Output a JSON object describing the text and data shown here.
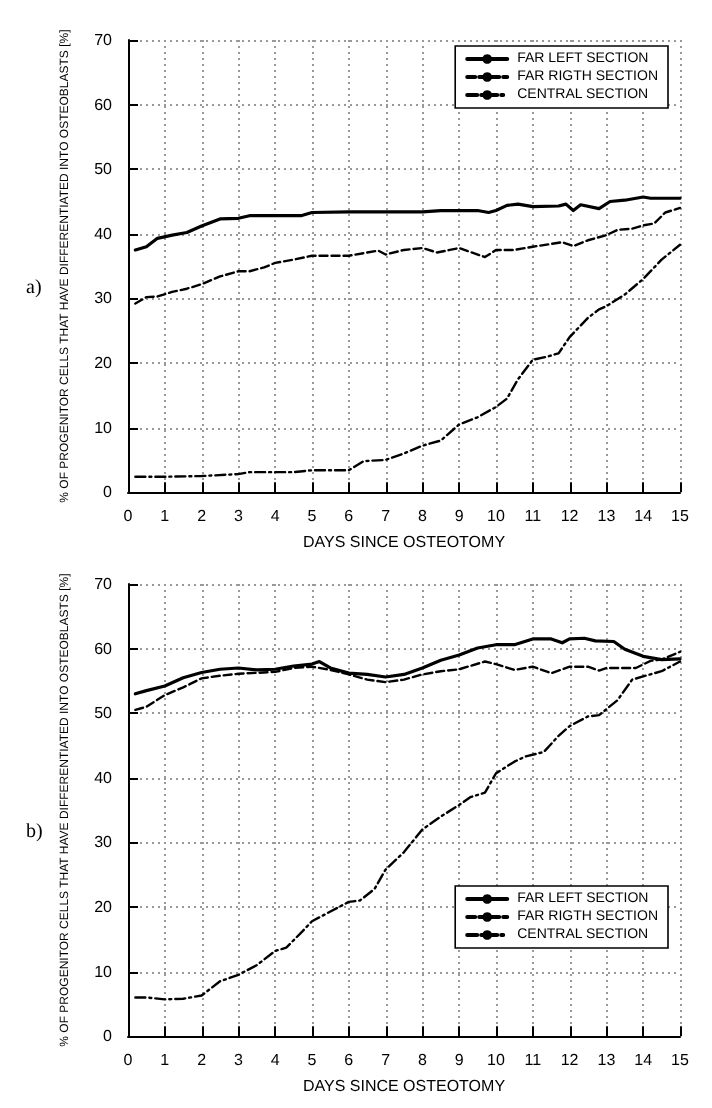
{
  "chart_data": [
    {
      "type": "line",
      "title": "a)",
      "xlabel": "DAYS SINCE OSTEOTOMY",
      "ylabel": "% OF PROGENITOR CELLS THAT HAVE DIFFERENTIATED INTO OSTEOBLASTS [%]",
      "xlim": [
        0,
        15
      ],
      "xticks": [
        0,
        1,
        2,
        3,
        4,
        5,
        6,
        7,
        8,
        9,
        10,
        11,
        12,
        13,
        14,
        15
      ],
      "ylim": [
        0,
        70
      ],
      "yticks": [
        0,
        10,
        20,
        30,
        40,
        50,
        60,
        70
      ],
      "grid": true,
      "legend": "top right",
      "series": [
        {
          "name": "FAR LEFT SECTION",
          "color": "#000000",
          "line_style": "solid",
          "x": [
            0.2,
            0.5,
            0.8,
            1.2,
            1.6,
            2,
            2.5,
            3,
            3.3,
            4,
            4.7,
            5,
            6,
            7,
            8,
            8.5,
            9.5,
            9.8,
            10,
            10.3,
            10.6,
            11,
            11.7,
            11.9,
            12.1,
            12.3,
            12.8,
            13.1,
            13.5,
            14,
            14.2,
            15
          ],
          "values": [
            37.5,
            38,
            39.3,
            39.8,
            40.2,
            41.2,
            42.3,
            42.4,
            42.8,
            42.8,
            42.8,
            43.3,
            43.4,
            43.4,
            43.4,
            43.6,
            43.6,
            43.3,
            43.6,
            44.4,
            44.6,
            44.2,
            44.3,
            44.6,
            43.6,
            44.5,
            43.9,
            45,
            45.2,
            45.7,
            45.5,
            45.5
          ]
        },
        {
          "name": "FAR RIGTH SECTION",
          "color": "#000000",
          "line_style": "dashed",
          "x": [
            0.2,
            0.5,
            0.8,
            1.2,
            1.6,
            2,
            2.5,
            3,
            3.3,
            3.7,
            4,
            4.5,
            5,
            6,
            6.8,
            7,
            7.5,
            8,
            8.4,
            9,
            9.7,
            10,
            10.5,
            11,
            11.8,
            12.1,
            12.5,
            13,
            13.3,
            13.7,
            14,
            14.3,
            14.6,
            15
          ],
          "values": [
            29.2,
            30.2,
            30.3,
            31,
            31.5,
            32.2,
            33.4,
            34.2,
            34.2,
            34.8,
            35.5,
            36,
            36.6,
            36.6,
            37.4,
            36.8,
            37.5,
            37.8,
            37.1,
            37.8,
            36.4,
            37.5,
            37.5,
            38,
            38.7,
            38.1,
            39,
            39.8,
            40.6,
            40.8,
            41.3,
            41.6,
            43.3,
            44
          ]
        },
        {
          "name": "CENTRAL SECTION",
          "color": "#000000",
          "line_style": "dotted",
          "x": [
            0.2,
            1,
            2,
            3,
            3.3,
            4.5,
            5,
            6,
            6.4,
            7,
            7.5,
            8,
            8.5,
            9,
            9.5,
            10,
            10.3,
            10.6,
            11,
            11.4,
            11.7,
            12,
            12.5,
            12.8,
            13,
            13.5,
            14,
            14.5,
            15
          ],
          "values": [
            2.4,
            2.4,
            2.5,
            2.8,
            3.1,
            3.1,
            3.4,
            3.4,
            4.8,
            5,
            6,
            7.2,
            8,
            10.5,
            11.6,
            13.2,
            14.5,
            17.5,
            20.5,
            21,
            21.5,
            24,
            27,
            28.3,
            28.8,
            30.6,
            33,
            36,
            38.3
          ]
        }
      ]
    },
    {
      "type": "line",
      "title": "b)",
      "xlabel": "DAYS SINCE OSTEOTOMY",
      "ylabel": "% OF PROGENITOR CELLS THAT HAVE DIFFERENTIATED INTO OSTEOBLASTS [%]",
      "xlim": [
        0,
        15
      ],
      "xticks": [
        0,
        1,
        2,
        3,
        4,
        5,
        6,
        7,
        8,
        9,
        10,
        11,
        12,
        13,
        14,
        15
      ],
      "ylim": [
        0,
        70
      ],
      "yticks": [
        0,
        10,
        20,
        30,
        40,
        50,
        60,
        70
      ],
      "grid": true,
      "legend": "bottom right",
      "series": [
        {
          "name": "FAR LEFT SECTION",
          "color": "#000000",
          "line_style": "solid",
          "x": [
            0.2,
            0.5,
            1,
            1.5,
            2,
            2.5,
            3,
            3.5,
            4,
            4.5,
            5,
            5.2,
            5.5,
            6,
            6.5,
            7,
            7.5,
            8,
            8.5,
            9,
            9.5,
            10,
            10.5,
            11,
            11.5,
            11.8,
            12,
            12.4,
            12.7,
            13.2,
            13.5,
            14,
            14.5,
            15
          ],
          "values": [
            53,
            53.5,
            54.2,
            55.5,
            56.3,
            56.8,
            57,
            56.7,
            56.8,
            57.3,
            57.6,
            58,
            57,
            56.2,
            56,
            55.6,
            56,
            57,
            58.2,
            59,
            60.1,
            60.6,
            60.6,
            61.5,
            61.5,
            60.9,
            61.5,
            61.6,
            61.2,
            61.1,
            59.9,
            58.8,
            58.3,
            58.4
          ]
        },
        {
          "name": "FAR RIGTH SECTION",
          "color": "#000000",
          "line_style": "dashed",
          "x": [
            0.2,
            0.5,
            1,
            1.5,
            2,
            2.5,
            3,
            4,
            4.5,
            5,
            5.5,
            6,
            6.5,
            7,
            7.5,
            8,
            8.5,
            9,
            9.7,
            10,
            10.5,
            11,
            11.5,
            12,
            12.5,
            12.8,
            13,
            13.8,
            14.2,
            14.5,
            15
          ],
          "values": [
            50.5,
            51,
            52.8,
            54,
            55.4,
            55.8,
            56.1,
            56.4,
            57,
            57.2,
            56.7,
            56,
            55.2,
            54.8,
            55.2,
            56,
            56.5,
            56.8,
            58,
            57.6,
            56.7,
            57.2,
            56.2,
            57.2,
            57.2,
            56.6,
            57,
            57,
            58.1,
            58.3,
            59.5
          ]
        },
        {
          "name": "CENTRAL SECTION",
          "color": "#000000",
          "line_style": "dotted",
          "x": [
            0.2,
            0.5,
            1,
            1.5,
            2,
            2.5,
            3,
            3.5,
            4,
            4.3,
            4.7,
            5,
            5.5,
            6,
            6.3,
            6.7,
            7,
            7.5,
            8,
            8.5,
            9,
            9.3,
            9.7,
            10,
            10.5,
            10.8,
            11.3,
            11.7,
            12,
            12.5,
            12.8,
            13.3,
            13.7,
            14,
            14.5,
            15
          ],
          "values": [
            6,
            6,
            5.7,
            5.8,
            6.3,
            8.5,
            9.5,
            11,
            13.2,
            13.7,
            16,
            17.8,
            19.3,
            20.8,
            21,
            22.8,
            25.8,
            28.5,
            32,
            34,
            35.8,
            37,
            37.7,
            40.7,
            42.5,
            43.3,
            44,
            46.5,
            48,
            49.5,
            49.7,
            52,
            55.2,
            55.7,
            56.5,
            58
          ]
        }
      ]
    }
  ]
}
